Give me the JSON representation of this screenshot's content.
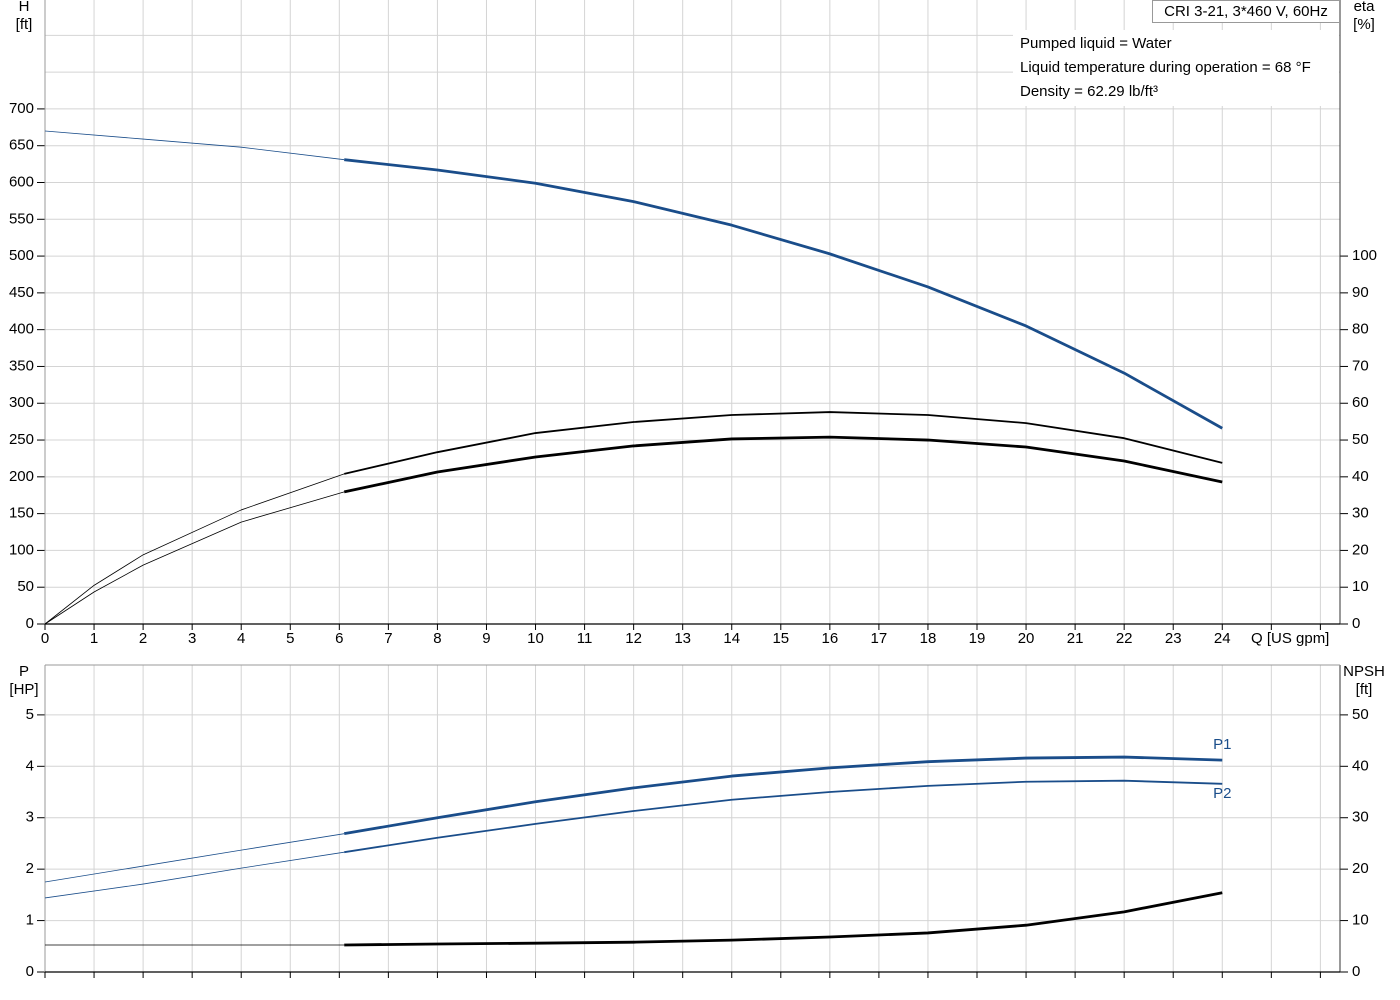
{
  "chart_data": [
    {
      "type": "line",
      "title": "CRI 3-21, 3*460 V, 60Hz",
      "annotations": [
        "Pumped liquid = Water",
        "Liquid temperature during operation = 68 °F",
        "Density = 62.29 lb/ft³"
      ],
      "y_label": "H",
      "y_unit": "[ft]",
      "y2_label": "eta",
      "y2_unit": "[%]",
      "x_label": "Q [US gpm]",
      "xlim": [
        0,
        26.4
      ],
      "xticks": [
        0,
        1,
        2,
        3,
        4,
        5,
        6,
        7,
        8,
        9,
        10,
        11,
        12,
        13,
        14,
        15,
        16,
        17,
        18,
        19,
        20,
        21,
        22,
        23,
        24,
        {
          "value": 25,
          "label": null
        },
        {
          "value": 26,
          "label": null
        }
      ],
      "ylim": [
        0,
        848
      ],
      "yticks": [
        0,
        50,
        100,
        150,
        200,
        250,
        300,
        350,
        400,
        450,
        500,
        550,
        600,
        650,
        700,
        {
          "value": 750,
          "label": null
        },
        {
          "value": 800,
          "label": null
        }
      ],
      "y2lim": [
        0,
        169.6
      ],
      "y2ticks": [
        0,
        10,
        20,
        30,
        40,
        50,
        60,
        70,
        80,
        90,
        100
      ],
      "grid": true,
      "series": [
        {
          "color": "#1a4d8a",
          "style": "thin",
          "axis": "y",
          "x": [
            0,
            2,
            4,
            6.1
          ],
          "values": [
            670,
            659,
            648,
            631
          ]
        },
        {
          "color": "#1a4d8a",
          "style": "thick",
          "axis": "y",
          "x": [
            6.1,
            8,
            10,
            12,
            14,
            16,
            18,
            20,
            22,
            24
          ],
          "values": [
            631,
            617,
            599,
            574,
            542,
            503,
            458,
            405,
            341,
            266
          ]
        },
        {
          "color": "#000000",
          "style": "thin",
          "axis": "y2",
          "x": [
            0,
            1,
            2,
            4,
            6.1
          ],
          "values": [
            0,
            10.5,
            18.8,
            31,
            40.8
          ]
        },
        {
          "color": "#000000",
          "style": "medium",
          "axis": "y2",
          "x": [
            6.1,
            8,
            10,
            12,
            14,
            16,
            18,
            20,
            22,
            24
          ],
          "values": [
            40.8,
            46.7,
            51.9,
            54.9,
            56.8,
            57.6,
            56.8,
            54.6,
            50.5,
            43.8
          ]
        },
        {
          "color": "#000000",
          "style": "thin",
          "axis": "y2",
          "x": [
            0,
            1,
            2,
            4,
            6.1
          ],
          "values": [
            0,
            8.7,
            16,
            27.7,
            35.9
          ]
        },
        {
          "color": "#000000",
          "style": "thick",
          "axis": "y2",
          "x": [
            6.1,
            8,
            10,
            12,
            14,
            16,
            18,
            20,
            22,
            24
          ],
          "values": [
            35.9,
            41.3,
            45.4,
            48.4,
            50.3,
            50.8,
            50,
            48.1,
            44.3,
            38.6
          ]
        }
      ]
    },
    {
      "type": "line",
      "y_label": "P",
      "y_unit": "[HP]",
      "y2_label": "NPSH",
      "y2_unit": "[ft]",
      "xlim": [
        0,
        26.4
      ],
      "xticks": [
        {
          "value": 0,
          "label": null
        },
        {
          "value": 1,
          "label": null
        },
        {
          "value": 2,
          "label": null
        },
        {
          "value": 3,
          "label": null
        },
        {
          "value": 4,
          "label": null
        },
        {
          "value": 5,
          "label": null
        },
        {
          "value": 6,
          "label": null
        },
        {
          "value": 7,
          "label": null
        },
        {
          "value": 8,
          "label": null
        },
        {
          "value": 9,
          "label": null
        },
        {
          "value": 10,
          "label": null
        },
        {
          "value": 11,
          "label": null
        },
        {
          "value": 12,
          "label": null
        },
        {
          "value": 13,
          "label": null
        },
        {
          "value": 14,
          "label": null
        },
        {
          "value": 15,
          "label": null
        },
        {
          "value": 16,
          "label": null
        },
        {
          "value": 17,
          "label": null
        },
        {
          "value": 18,
          "label": null
        },
        {
          "value": 19,
          "label": null
        },
        {
          "value": 20,
          "label": null
        },
        {
          "value": 21,
          "label": null
        },
        {
          "value": 22,
          "label": null
        },
        {
          "value": 23,
          "label": null
        },
        {
          "value": 24,
          "label": null
        },
        {
          "value": 25,
          "label": null
        },
        {
          "value": 26,
          "label": null
        }
      ],
      "ylim": [
        0,
        5.97
      ],
      "yticks": [
        0,
        1,
        2,
        3,
        4,
        5
      ],
      "y2lim": [
        0,
        59.7
      ],
      "y2ticks": [
        0,
        10,
        20,
        30,
        40,
        50
      ],
      "grid": true,
      "series": [
        {
          "color": "#1a4d8a",
          "style": "thin",
          "axis": "y",
          "x": [
            0,
            2,
            4,
            6.1
          ],
          "values": [
            1.75,
            2.06,
            2.37,
            2.69
          ]
        },
        {
          "name": "P1",
          "label_side": "above",
          "color": "#1a4d8a",
          "style": "thick",
          "axis": "y",
          "x": [
            6.1,
            8,
            10,
            12,
            14,
            16,
            18,
            20,
            22,
            24
          ],
          "values": [
            2.69,
            3.0,
            3.31,
            3.58,
            3.81,
            3.97,
            4.09,
            4.16,
            4.18,
            4.12
          ]
        },
        {
          "color": "#1a4d8a",
          "style": "thin",
          "axis": "y",
          "x": [
            0,
            2,
            4,
            6.1
          ],
          "values": [
            1.44,
            1.71,
            2.02,
            2.33
          ]
        },
        {
          "name": "P2",
          "label_side": "below",
          "color": "#1a4d8a",
          "style": "medium",
          "axis": "y",
          "x": [
            6.1,
            8,
            10,
            12,
            14,
            16,
            18,
            20,
            22,
            24
          ],
          "values": [
            2.33,
            2.61,
            2.88,
            3.13,
            3.35,
            3.5,
            3.62,
            3.7,
            3.72,
            3.66
          ]
        },
        {
          "color": "#000000",
          "style": "thin",
          "axis": "y2",
          "x": [
            0,
            6.1
          ],
          "values": [
            5.25,
            5.25
          ]
        },
        {
          "color": "#000000",
          "style": "thick",
          "axis": "y2",
          "x": [
            6.1,
            8,
            10,
            12,
            14,
            16,
            18,
            20,
            22,
            24
          ],
          "values": [
            5.25,
            5.45,
            5.6,
            5.8,
            6.2,
            6.8,
            7.6,
            9.1,
            11.7,
            15.4
          ]
        }
      ]
    }
  ]
}
